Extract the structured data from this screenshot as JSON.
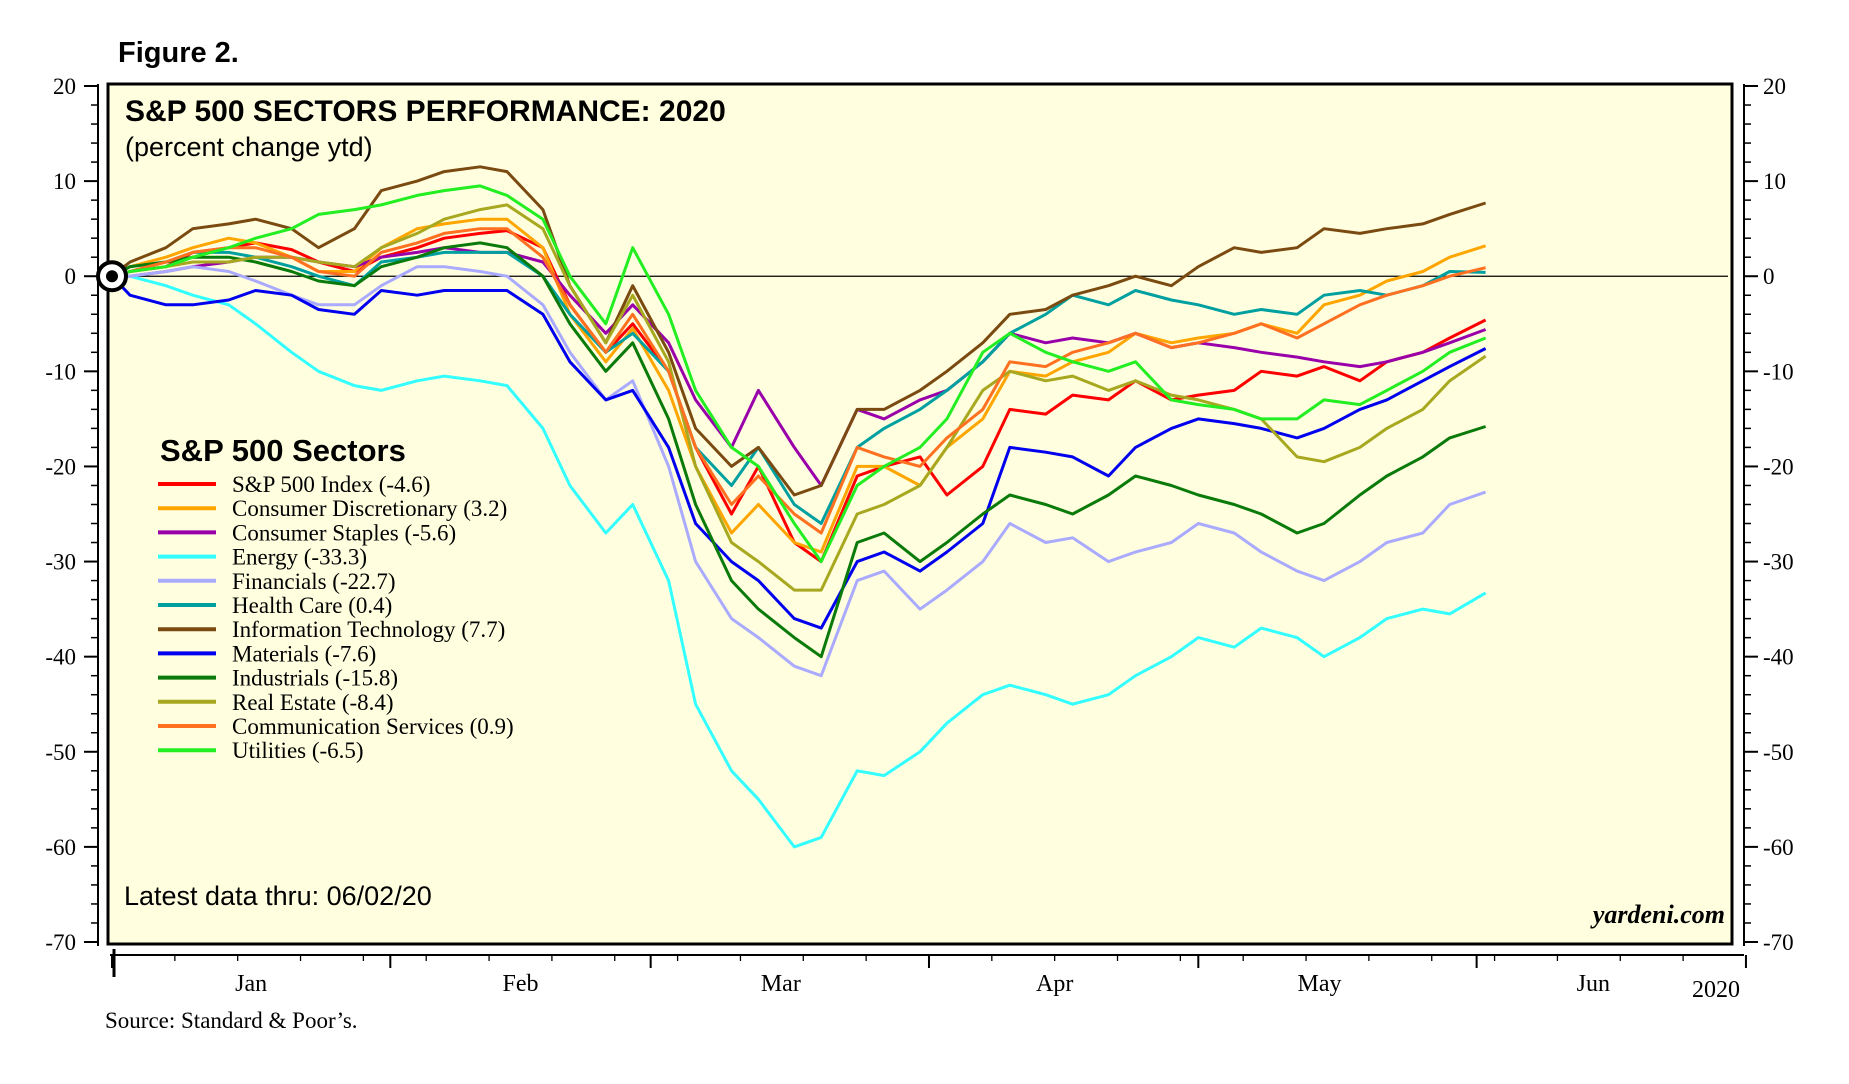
{
  "figure_label": "Figure 2.",
  "source": "Source: Standard & Poor’s.",
  "chart_data": {
    "type": "line",
    "title": "S&P 500 SECTORS PERFORMANCE: 2020",
    "subtitle": "(percent change ytd)",
    "xlabel": "",
    "ylabel": "percent change ytd",
    "ylim": [
      -70,
      20
    ],
    "yticks": [
      20,
      10,
      0,
      -10,
      -20,
      -30,
      -40,
      -50,
      -60,
      -70
    ],
    "xlim": [
      0,
      180
    ],
    "month_labels": [
      "Jan",
      "Feb",
      "Mar",
      "Apr",
      "May",
      "Jun"
    ],
    "month_label_x": [
      15.5,
      45.5,
      74.5,
      105,
      134.5,
      165
    ],
    "month_tick_x": [
      0,
      31,
      60,
      91,
      121,
      152,
      182
    ],
    "year_label": "2020",
    "legend_title": "S&P 500 Sectors",
    "legend_position": "left-center",
    "note": "Latest data thru: 06/02/20",
    "watermark": "yardeni.com",
    "zero_line": true,
    "x_points": [
      0,
      2,
      6,
      9,
      13,
      16,
      20,
      23,
      27,
      30,
      34,
      37,
      41,
      44,
      48,
      51,
      55,
      58,
      62,
      65,
      69,
      72,
      76,
      79,
      83,
      86,
      90,
      93,
      97,
      100,
      104,
      107,
      111,
      114,
      118,
      121,
      125,
      128,
      132,
      135,
      139,
      142,
      146,
      149,
      153
    ],
    "series": [
      {
        "name": "S&P 500 Index",
        "final": "-4.6",
        "color": "#ff0000",
        "values": [
          0,
          0.5,
          1.0,
          2.5,
          3.0,
          3.5,
          2.8,
          1.5,
          0.5,
          2.0,
          3.0,
          4.0,
          4.5,
          4.8,
          3.0,
          -3.0,
          -8.0,
          -5.0,
          -10.0,
          -18.0,
          -25.0,
          -20.0,
          -28.0,
          -30.0,
          -21.0,
          -20.0,
          -19.0,
          -23.0,
          -20.0,
          -14.0,
          -14.5,
          -12.5,
          -13.0,
          -11.0,
          -13.0,
          -12.5,
          -12.0,
          -10.0,
          -10.5,
          -9.5,
          -11.0,
          -9.0,
          -8.0,
          -6.5,
          -4.6
        ]
      },
      {
        "name": "Consumer Discretionary",
        "final": "3.2",
        "color": "#ffa500",
        "values": [
          0,
          1.0,
          2.0,
          3.0,
          4.0,
          3.5,
          2.0,
          0.5,
          0.5,
          3.0,
          5.0,
          5.5,
          6.0,
          6.0,
          3.0,
          -4.0,
          -9.0,
          -5.5,
          -12.0,
          -20.0,
          -27.0,
          -24.0,
          -28.0,
          -29.0,
          -20.0,
          -20.0,
          -22.0,
          -18.0,
          -15.0,
          -10.0,
          -10.5,
          -9.0,
          -8.0,
          -6.0,
          -7.0,
          -6.5,
          -6.0,
          -5.0,
          -6.0,
          -3.0,
          -2.0,
          -0.5,
          0.5,
          2.0,
          3.2
        ]
      },
      {
        "name": "Consumer Staples",
        "final": "-5.6",
        "color": "#9900aa",
        "values": [
          0,
          0.0,
          0.5,
          1.0,
          1.5,
          2.0,
          2.0,
          1.5,
          1.0,
          2.0,
          2.5,
          3.0,
          2.5,
          2.5,
          1.5,
          -2.0,
          -6.0,
          -3.0,
          -7.0,
          -13.0,
          -18.0,
          -12.0,
          -18.0,
          -22.0,
          -14.0,
          -15.0,
          -13.0,
          -12.0,
          -9.0,
          -6.0,
          -7.0,
          -6.5,
          -7.0,
          -6.0,
          -7.5,
          -7.0,
          -7.5,
          -8.0,
          -8.5,
          -9.0,
          -9.5,
          -9.0,
          -8.0,
          -7.0,
          -5.6
        ]
      },
      {
        "name": "Energy",
        "final": "-33.3",
        "color": "#33ffff",
        "values": [
          0,
          0.0,
          -1.0,
          -2.0,
          -3.0,
          -5.0,
          -8.0,
          -10.0,
          -11.5,
          -12.0,
          -11.0,
          -10.5,
          -11.0,
          -11.5,
          -16.0,
          -22.0,
          -27.0,
          -24.0,
          -32.0,
          -45.0,
          -52.0,
          -55.0,
          -60.0,
          -59.0,
          -52.0,
          -52.5,
          -50.0,
          -47.0,
          -44.0,
          -43.0,
          -44.0,
          -45.0,
          -44.0,
          -42.0,
          -40.0,
          -38.0,
          -39.0,
          -37.0,
          -38.0,
          -40.0,
          -38.0,
          -36.0,
          -35.0,
          -35.5,
          -33.3
        ]
      },
      {
        "name": "Financials",
        "final": "-22.7",
        "color": "#aaaaff",
        "values": [
          0,
          0.0,
          0.5,
          1.0,
          0.5,
          -0.5,
          -2.0,
          -3.0,
          -3.0,
          -1.0,
          1.0,
          1.0,
          0.5,
          0.0,
          -3.0,
          -8.0,
          -13.0,
          -11.0,
          -20.0,
          -30.0,
          -36.0,
          -38.0,
          -41.0,
          -42.0,
          -32.0,
          -31.0,
          -35.0,
          -33.0,
          -30.0,
          -26.0,
          -28.0,
          -27.5,
          -30.0,
          -29.0,
          -28.0,
          -26.0,
          -27.0,
          -29.0,
          -31.0,
          -32.0,
          -30.0,
          -28.0,
          -27.0,
          -24.0,
          -22.7
        ]
      },
      {
        "name": "Health Care",
        "final": "0.4",
        "color": "#00a0a0",
        "values": [
          0,
          1.0,
          1.5,
          2.5,
          2.5,
          2.0,
          1.0,
          0.0,
          -1.0,
          1.5,
          2.0,
          2.5,
          2.5,
          2.5,
          0.0,
          -4.0,
          -8.0,
          -6.0,
          -10.0,
          -18.0,
          -22.0,
          -18.0,
          -24.0,
          -26.0,
          -18.0,
          -16.0,
          -14.0,
          -12.0,
          -9.0,
          -6.0,
          -4.0,
          -2.0,
          -3.0,
          -1.5,
          -2.5,
          -3.0,
          -4.0,
          -3.5,
          -4.0,
          -2.0,
          -1.5,
          -2.0,
          -1.0,
          0.5,
          0.4
        ]
      },
      {
        "name": "Information Technology",
        "final": "7.7",
        "color": "#7a4a10",
        "values": [
          0,
          1.5,
          3.0,
          5.0,
          5.5,
          6.0,
          5.0,
          3.0,
          5.0,
          9.0,
          10.0,
          11.0,
          11.5,
          11.0,
          7.0,
          -1.0,
          -7.0,
          -1.0,
          -8.0,
          -16.0,
          -20.0,
          -18.0,
          -23.0,
          -22.0,
          -14.0,
          -14.0,
          -12.0,
          -10.0,
          -7.0,
          -4.0,
          -3.5,
          -2.0,
          -1.0,
          0.0,
          -1.0,
          1.0,
          3.0,
          2.5,
          3.0,
          5.0,
          4.5,
          5.0,
          5.5,
          6.5,
          7.7
        ]
      },
      {
        "name": "Materials",
        "final": "-7.6",
        "color": "#0000ee",
        "values": [
          0,
          -2.0,
          -3.0,
          -3.0,
          -2.5,
          -1.5,
          -2.0,
          -3.5,
          -4.0,
          -1.5,
          -2.0,
          -1.5,
          -1.5,
          -1.5,
          -4.0,
          -9.0,
          -13.0,
          -12.0,
          -18.0,
          -26.0,
          -30.0,
          -32.0,
          -36.0,
          -37.0,
          -30.0,
          -29.0,
          -31.0,
          -29.0,
          -26.0,
          -18.0,
          -18.5,
          -19.0,
          -21.0,
          -18.0,
          -16.0,
          -15.0,
          -15.5,
          -16.0,
          -17.0,
          -16.0,
          -14.0,
          -13.0,
          -11.0,
          -9.5,
          -7.6
        ]
      },
      {
        "name": "Industrials",
        "final": "-15.8",
        "color": "#0a7a0a",
        "values": [
          0,
          1.0,
          1.5,
          2.0,
          2.0,
          1.5,
          0.5,
          -0.5,
          -1.0,
          1.0,
          2.0,
          3.0,
          3.5,
          3.0,
          0.0,
          -5.0,
          -10.0,
          -7.0,
          -15.0,
          -24.0,
          -32.0,
          -35.0,
          -38.0,
          -40.0,
          -28.0,
          -27.0,
          -30.0,
          -28.0,
          -25.0,
          -23.0,
          -24.0,
          -25.0,
          -23.0,
          -21.0,
          -22.0,
          -23.0,
          -24.0,
          -25.0,
          -27.0,
          -26.0,
          -23.0,
          -21.0,
          -19.0,
          -17.0,
          -15.8
        ]
      },
      {
        "name": "Real Estate",
        "final": "-8.4",
        "color": "#a8a820",
        "values": [
          0,
          0.5,
          1.0,
          1.5,
          1.5,
          2.0,
          2.0,
          1.5,
          1.0,
          3.0,
          4.5,
          6.0,
          7.0,
          7.5,
          5.0,
          -1.0,
          -7.0,
          -2.0,
          -9.0,
          -20.0,
          -28.0,
          -30.0,
          -33.0,
          -33.0,
          -25.0,
          -24.0,
          -22.0,
          -18.0,
          -12.0,
          -10.0,
          -11.0,
          -10.5,
          -12.0,
          -11.0,
          -12.5,
          -13.0,
          -14.0,
          -15.0,
          -19.0,
          -19.5,
          -18.0,
          -16.0,
          -14.0,
          -11.0,
          -8.4
        ]
      },
      {
        "name": "Communication Services",
        "final": "0.9",
        "color": "#ff7020",
        "values": [
          0,
          0.5,
          1.5,
          2.5,
          3.0,
          3.0,
          2.0,
          0.5,
          0.0,
          2.5,
          3.5,
          4.5,
          5.0,
          5.0,
          2.0,
          -3.0,
          -8.0,
          -4.0,
          -10.0,
          -18.0,
          -24.0,
          -21.0,
          -25.0,
          -27.0,
          -18.0,
          -19.0,
          -20.0,
          -17.0,
          -14.0,
          -9.0,
          -9.5,
          -8.0,
          -7.0,
          -6.0,
          -7.5,
          -7.0,
          -6.0,
          -5.0,
          -6.5,
          -5.0,
          -3.0,
          -2.0,
          -1.0,
          0.0,
          0.9
        ]
      },
      {
        "name": "Utilities",
        "final": "-6.5",
        "color": "#22ee22",
        "values": [
          0,
          0.5,
          1.0,
          2.0,
          3.0,
          4.0,
          5.0,
          6.5,
          7.0,
          7.5,
          8.5,
          9.0,
          9.5,
          8.5,
          6.0,
          0.0,
          -5.0,
          3.0,
          -4.0,
          -12.0,
          -18.0,
          -20.0,
          -26.0,
          -30.0,
          -22.0,
          -20.0,
          -18.0,
          -15.0,
          -8.0,
          -6.0,
          -8.0,
          -9.0,
          -10.0,
          -9.0,
          -13.0,
          -13.5,
          -14.0,
          -15.0,
          -15.0,
          -13.0,
          -13.5,
          -12.0,
          -10.0,
          -8.0,
          -6.5
        ]
      }
    ]
  }
}
